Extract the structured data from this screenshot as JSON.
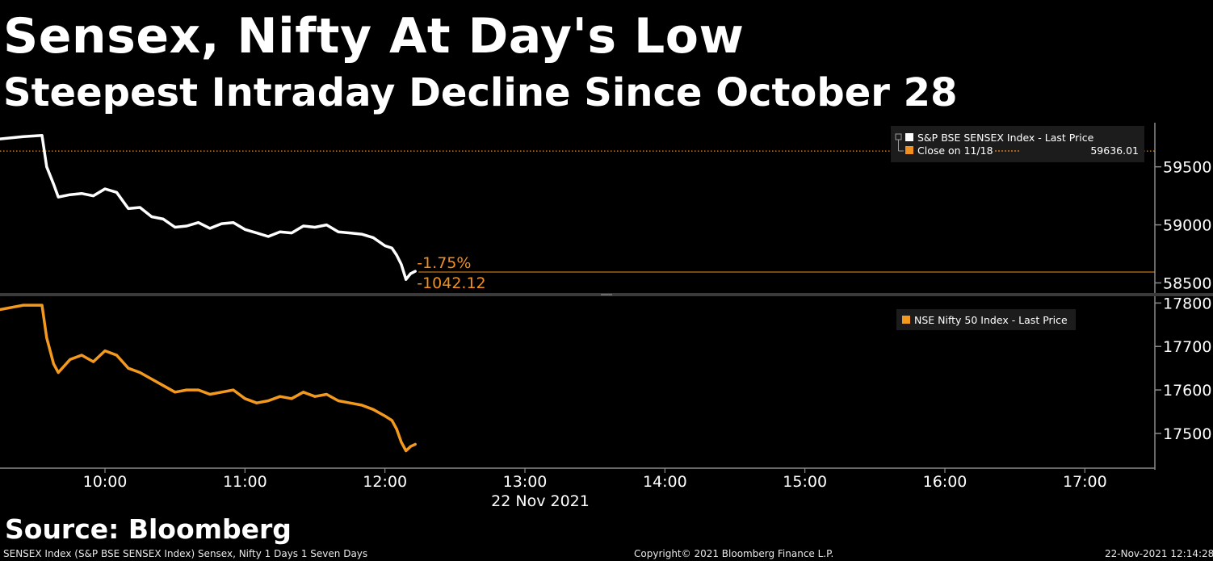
{
  "title": "Sensex, Nifty At Day's Low",
  "subtitle": "Steepest Intraday Decline Since October 28",
  "source": "Source: Bloomberg",
  "footer": {
    "left": "SENSEX Index (S&P BSE SENSEX Index) Sensex, Nifty 1 Days 1 Seven Days",
    "middle": "Copyright© 2021 Bloomberg Finance L.P.",
    "right": "22-Nov-2021 12:14:28"
  },
  "colors": {
    "sensex": "#ffffff",
    "nifty": "#f39a1e",
    "accent": "#f0901e",
    "grid": "#808080"
  },
  "chart_data": [
    {
      "type": "line",
      "name": "sensex-panel",
      "series": [
        {
          "name": "S&P BSE SENSEX Index - Last Price",
          "x": [
            "09:15",
            "09:25",
            "09:33",
            "09:35",
            "09:38",
            "09:40",
            "09:45",
            "09:50",
            "09:55",
            "10:00",
            "10:05",
            "10:10",
            "10:15",
            "10:20",
            "10:25",
            "10:30",
            "10:35",
            "10:40",
            "10:45",
            "10:50",
            "10:55",
            "11:00",
            "11:05",
            "11:10",
            "11:15",
            "11:20",
            "11:25",
            "11:30",
            "11:35",
            "11:40",
            "11:45",
            "11:50",
            "11:55",
            "12:00",
            "12:03",
            "12:05",
            "12:07",
            "12:09",
            "12:11",
            "12:13"
          ],
          "values": [
            59740,
            59760,
            59770,
            59500,
            59350,
            59240,
            59260,
            59270,
            59250,
            59310,
            59280,
            59140,
            59150,
            59070,
            59050,
            58980,
            58990,
            59020,
            58970,
            59010,
            59020,
            58960,
            58930,
            58900,
            58940,
            58930,
            58990,
            58980,
            59000,
            58940,
            58930,
            58920,
            58890,
            58820,
            58800,
            58740,
            58660,
            58530,
            58580,
            58600
          ]
        },
        {
          "name": "Close on 11/18",
          "value": 59636.01,
          "value_label": "59636.01"
        }
      ],
      "xlim": [
        "09:15",
        "17:30"
      ],
      "ylim": [
        58420,
        59880
      ],
      "y_ticks": [
        58500,
        59000,
        59500
      ],
      "y_tick_labels": [
        "58500",
        "59000",
        "59500"
      ],
      "last_value": 58593.89,
      "annotations": [
        "-1.75%",
        "-1042.12"
      ],
      "legend_placement": "top-right"
    },
    {
      "type": "line",
      "name": "nifty-panel",
      "series": [
        {
          "name": "NSE Nifty 50 Index - Last Price",
          "x": [
            "09:15",
            "09:25",
            "09:33",
            "09:35",
            "09:38",
            "09:40",
            "09:45",
            "09:50",
            "09:55",
            "10:00",
            "10:05",
            "10:10",
            "10:15",
            "10:20",
            "10:25",
            "10:30",
            "10:35",
            "10:40",
            "10:45",
            "10:50",
            "10:55",
            "11:00",
            "11:05",
            "11:10",
            "11:15",
            "11:20",
            "11:25",
            "11:30",
            "11:35",
            "11:40",
            "11:45",
            "11:50",
            "11:55",
            "12:00",
            "12:03",
            "12:05",
            "12:07",
            "12:09",
            "12:11",
            "12:13"
          ],
          "values": [
            17785,
            17795,
            17795,
            17720,
            17660,
            17640,
            17670,
            17680,
            17665,
            17690,
            17680,
            17650,
            17640,
            17625,
            17610,
            17595,
            17600,
            17600,
            17590,
            17595,
            17600,
            17580,
            17570,
            17575,
            17585,
            17580,
            17595,
            17585,
            17590,
            17575,
            17570,
            17565,
            17555,
            17540,
            17530,
            17510,
            17480,
            17460,
            17470,
            17475
          ]
        }
      ],
      "xlim": [
        "09:15",
        "17:30"
      ],
      "ylim": [
        17420,
        17810
      ],
      "y_ticks": [
        17500,
        17600,
        17700,
        17800
      ],
      "y_tick_labels": [
        "17500",
        "17600",
        "17700",
        "17800"
      ],
      "legend_placement": "top-right"
    }
  ],
  "x_axis": {
    "tick_labels": [
      "10:00",
      "11:00",
      "12:00",
      "13:00",
      "14:00",
      "15:00",
      "16:00",
      "17:00"
    ],
    "date_label": "22 Nov 2021"
  }
}
